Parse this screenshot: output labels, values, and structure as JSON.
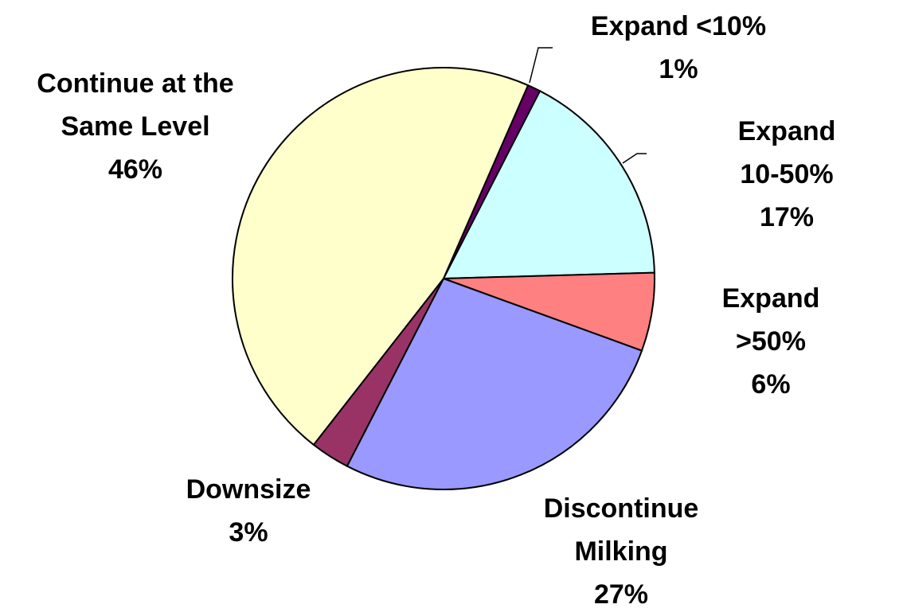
{
  "chart_data": {
    "type": "pie",
    "categories": [
      "Expand <10%",
      "Expand 10-50%",
      "Expand >50%",
      "Discontinue\nMilking",
      "Downsize",
      "Continue at the\nSame Level"
    ],
    "values": [
      1,
      17,
      6,
      27,
      3,
      46
    ],
    "value_labels": [
      "1%",
      "17%",
      "6%",
      "27%",
      "3%",
      "46%"
    ],
    "colors": [
      "#660066",
      "#ccffff",
      "#ff8080",
      "#9999ff",
      "#993366",
      "#ffffcc"
    ]
  }
}
